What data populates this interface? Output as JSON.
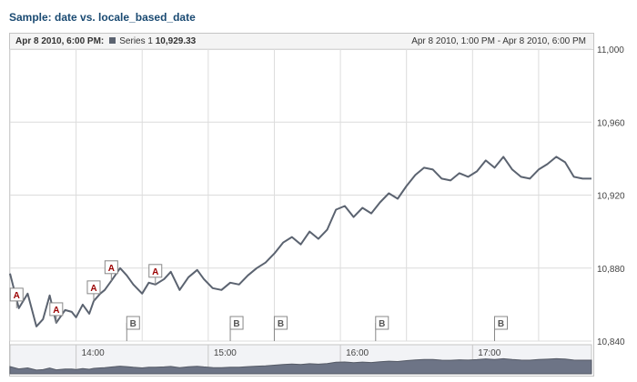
{
  "title": "Sample: date vs. locale_based_date",
  "infobar": {
    "date": "Apr 8 2010, 6:00 PM:",
    "series_name": "Series 1",
    "series_value": "10,929.33",
    "range": "Apr 8 2010, 1:00 PM - Apr 8 2010, 6:00 PM"
  },
  "colors": {
    "line": "#5b6370",
    "grid": "#dcdcdc",
    "navigator_fill": "#6d7486",
    "flag_a": "#9b0000",
    "flag_b": "#555555"
  },
  "chart_data": {
    "type": "line",
    "title": "Sample: date vs. locale_based_date",
    "xlabel": "",
    "ylabel": "",
    "x_range": [
      "13:30",
      "17:54"
    ],
    "ylim": [
      10840,
      11000
    ],
    "y_ticks": [
      "11,000",
      "10,960",
      "10,920",
      "10,880",
      "10,840"
    ],
    "y_tick_values": [
      11000,
      10960,
      10920,
      10880,
      10840
    ],
    "x_ticks": [
      "14:00",
      "15:00",
      "16:00",
      "17:00"
    ],
    "x_tick_times": [
      "14:00",
      "15:00",
      "16:00",
      "17:00"
    ],
    "grid": true,
    "series": [
      {
        "name": "Series 1",
        "x": [
          "13:30",
          "13:34",
          "13:38",
          "13:42",
          "13:45",
          "13:48",
          "13:51",
          "13:55",
          "13:58",
          "14:00",
          "14:03",
          "14:06",
          "14:08",
          "14:11",
          "14:13",
          "14:16",
          "14:20",
          "14:23",
          "14:26",
          "14:30",
          "14:33",
          "14:36",
          "14:40",
          "14:43",
          "14:47",
          "14:51",
          "14:55",
          "14:58",
          "15:02",
          "15:06",
          "15:10",
          "15:14",
          "15:18",
          "15:22",
          "15:26",
          "15:30",
          "15:34",
          "15:38",
          "15:42",
          "15:46",
          "15:50",
          "15:54",
          "15:58",
          "16:02",
          "16:06",
          "16:10",
          "16:14",
          "16:18",
          "16:22",
          "16:26",
          "16:30",
          "16:34",
          "16:38",
          "16:42",
          "16:46",
          "16:50",
          "16:54",
          "16:58",
          "17:02",
          "17:06",
          "17:10",
          "17:14",
          "17:18",
          "17:22",
          "17:26",
          "17:30",
          "17:34",
          "17:38",
          "17:42",
          "17:46",
          "17:50",
          "17:54"
        ],
        "y": [
          10877,
          10858,
          10866,
          10848,
          10852,
          10865,
          10850,
          10857,
          10856,
          10853,
          10860,
          10855,
          10862,
          10866,
          10868,
          10873,
          10880,
          10876,
          10871,
          10866,
          10872,
          10871,
          10874,
          10878,
          10868,
          10875,
          10879,
          10874,
          10869,
          10868,
          10872,
          10871,
          10876,
          10880,
          10883,
          10888,
          10894,
          10897,
          10893,
          10900,
          10896,
          10901,
          10912,
          10914,
          10908,
          10913,
          10910,
          10916,
          10921,
          10918,
          10925,
          10931,
          10935,
          10934,
          10929,
          10928,
          10932,
          10930,
          10933,
          10939,
          10935,
          10941,
          10934,
          10930,
          10929,
          10934,
          10937,
          10941,
          10938,
          10930,
          10929,
          10929
        ]
      }
    ],
    "flags_a": [
      {
        "label": "A",
        "x": "13:33",
        "y": 10858
      },
      {
        "label": "A",
        "x": "13:51",
        "y": 10850
      },
      {
        "label": "A",
        "x": "14:08",
        "y": 10862
      },
      {
        "label": "A",
        "x": "14:16",
        "y": 10873
      },
      {
        "label": "A",
        "x": "14:36",
        "y": 10871
      }
    ],
    "flags_b": [
      {
        "label": "B",
        "x": "14:23"
      },
      {
        "label": "B",
        "x": "15:10"
      },
      {
        "label": "B",
        "x": "15:30"
      },
      {
        "label": "B",
        "x": "16:16"
      },
      {
        "label": "B",
        "x": "17:10"
      }
    ],
    "navigator": {
      "x_ticks": [
        "14:00",
        "15:00",
        "16:00",
        "17:00"
      ]
    }
  }
}
